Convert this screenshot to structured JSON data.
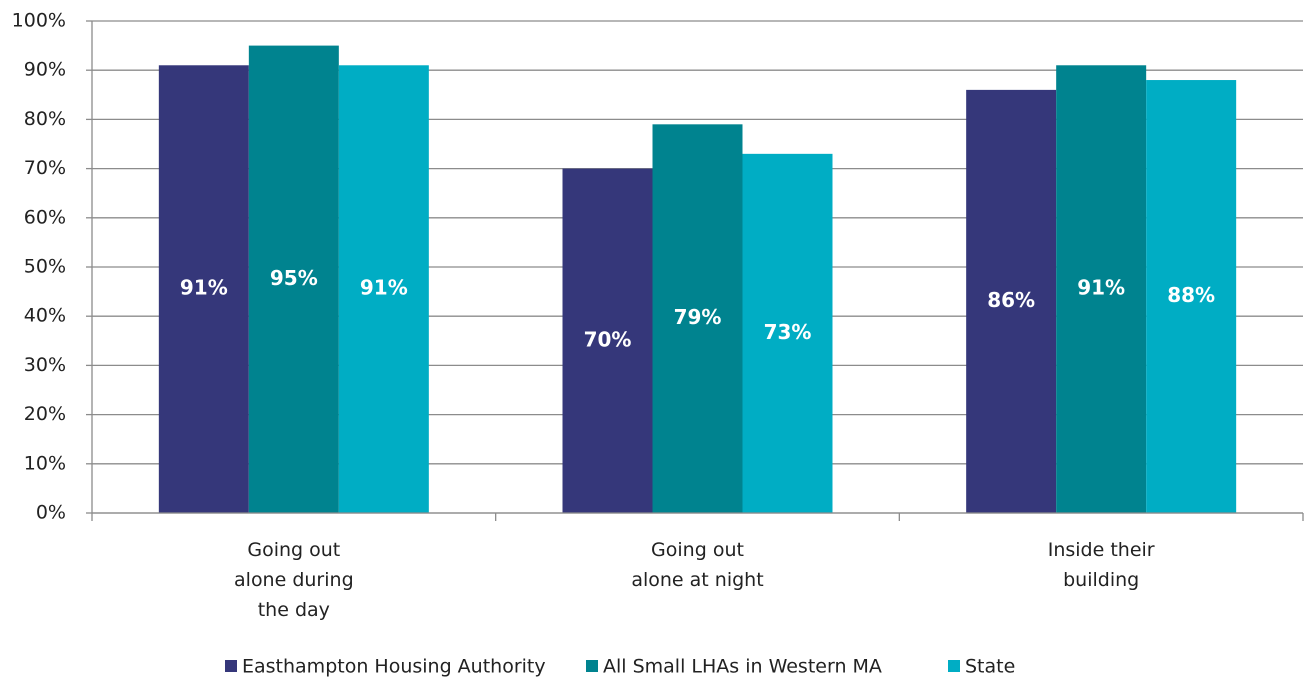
{
  "chart_data": {
    "type": "bar",
    "categories": [
      "Going out alone during the day",
      "Going out alone at night",
      "Inside their building"
    ],
    "series": [
      {
        "name": "Easthampton Housing Authority",
        "color": "#35377a",
        "values": [
          91,
          70,
          86
        ],
        "value_labels": [
          "91%",
          "70%",
          "86%"
        ]
      },
      {
        "name": "All Small LHAs in Western MA",
        "color": "#00838f",
        "values": [
          95,
          79,
          91
        ],
        "value_labels": [
          "95%",
          "79%",
          "91%"
        ]
      },
      {
        "name": "State",
        "color": "#00adc4",
        "values": [
          91,
          73,
          88
        ],
        "value_labels": [
          "91%",
          "73%",
          "88%"
        ]
      }
    ],
    "ylim": [
      0,
      100
    ],
    "yticks": [
      {
        "value": 0,
        "label": "0%"
      },
      {
        "value": 10,
        "label": "10%"
      },
      {
        "value": 20,
        "label": "20%"
      },
      {
        "value": 30,
        "label": "30%"
      },
      {
        "value": 40,
        "label": "40%"
      },
      {
        "value": 50,
        "label": "50%"
      },
      {
        "value": 60,
        "label": "60%"
      },
      {
        "value": 70,
        "label": "70%"
      },
      {
        "value": 80,
        "label": "80%"
      },
      {
        "value": 90,
        "label": "90%"
      },
      {
        "value": 100,
        "label": "100%"
      }
    ],
    "grid": true,
    "legend": "bottom"
  }
}
